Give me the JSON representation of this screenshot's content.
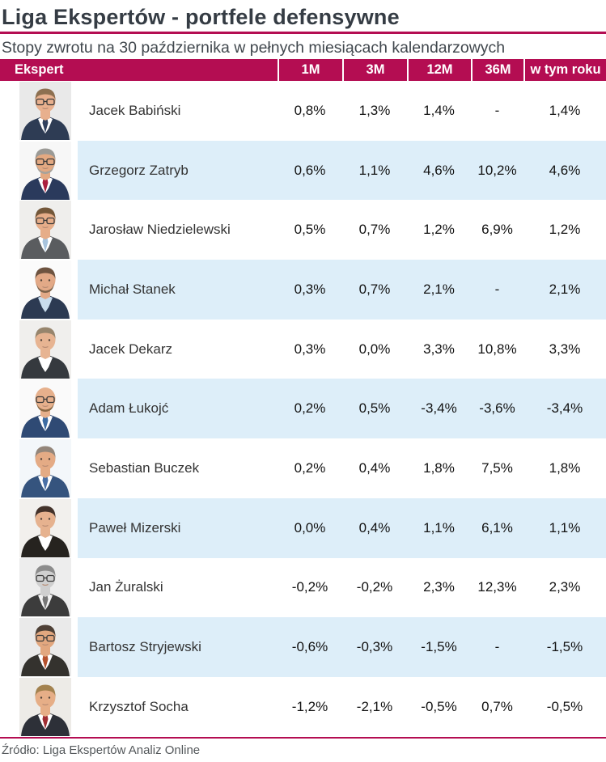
{
  "page": {
    "title": "Liga Ekspertów - portfele defensywne",
    "subtitle": "Stopy zwrotu na 30 października w pełnych miesiącach kalendarzowych",
    "source": "Źródło: Liga Ekspertów Analiz Online"
  },
  "colors": {
    "accent_crimson": "#b40d52",
    "stripe_blue": "#ddeef9",
    "title_text": "#353c44",
    "header_text": "#ffffff"
  },
  "table": {
    "columns": [
      "Ekspert",
      "1M",
      "3M",
      "12M",
      "36M",
      "w tym roku"
    ],
    "rows": [
      {
        "name": "Jacek Babiński",
        "values": [
          "0,8%",
          "1,3%",
          "1,4%",
          "-",
          "1,4%"
        ],
        "avatar": {
          "bg": "#e9e9e9",
          "skin": "#e8b08e",
          "hair": "#8d7051",
          "suit": "#2e3c54",
          "shirt": "#ffffff",
          "tie": "#31415e",
          "glasses": true
        }
      },
      {
        "name": "Grzegorz Zatryb",
        "values": [
          "0,6%",
          "1,1%",
          "4,6%",
          "10,2%",
          "4,6%"
        ],
        "avatar": {
          "bg": "#f7f7f7",
          "skin": "#e3a982",
          "hair": "#9b9a96",
          "beard": "#a5a29c",
          "suit": "#2a3a5c",
          "shirt": "#ffffff",
          "tie": "#aa1f3e",
          "glasses": true
        }
      },
      {
        "name": "Jarosław Niedzielewski",
        "values": [
          "0,5%",
          "0,7%",
          "1,2%",
          "6,9%",
          "1,2%"
        ],
        "avatar": {
          "bg": "#efeeec",
          "skin": "#e6ad89",
          "hair": "#73573a",
          "suit": "#5a5c5f",
          "shirt": "#ffffff",
          "tie": "#a8c4de",
          "glasses": true
        }
      },
      {
        "name": "Michał Stanek",
        "values": [
          "0,3%",
          "0,7%",
          "2,1%",
          "-",
          "2,1%"
        ],
        "avatar": {
          "bg": "#fbfbfb",
          "skin": "#e2a987",
          "hair": "#6d5340",
          "beard": "#7c6149",
          "suit": "#2c3a52",
          "shirt": "#c9dcec",
          "glasses": false
        }
      },
      {
        "name": "Jacek Dekarz",
        "values": [
          "0,3%",
          "0,0%",
          "3,3%",
          "10,8%",
          "3,3%"
        ],
        "avatar": {
          "bg": "#f0efed",
          "skin": "#e7b492",
          "hair": "#97856d",
          "suit": "#35393e",
          "shirt": "#ffffff",
          "glasses": false
        }
      },
      {
        "name": "Adam Łukojć",
        "values": [
          "0,2%",
          "0,5%",
          "-3,4%",
          "-3,6%",
          "-3,4%"
        ],
        "avatar": {
          "bg": "#fafafa",
          "skin": "#e6b08c",
          "bald": true,
          "beard": "#8a6844",
          "suit": "#2f4a74",
          "shirt": "#ffffff",
          "tie": "#3d6ca3",
          "glasses": true
        }
      },
      {
        "name": "Sebastian Buczek",
        "values": [
          "0,2%",
          "0,4%",
          "1,8%",
          "7,5%",
          "1,8%"
        ],
        "avatar": {
          "bg": "#f3f7fa",
          "skin": "#e4ab85",
          "hair": "#93867a",
          "suit": "#35547e",
          "shirt": "#ffffff",
          "tie": "#4a70a6",
          "glasses": false
        }
      },
      {
        "name": "Paweł Mizerski",
        "values": [
          "0,0%",
          "0,4%",
          "1,1%",
          "6,1%",
          "1,1%"
        ],
        "avatar": {
          "bg": "#f2f0ed",
          "skin": "#e6b28f",
          "hair": "#43322a",
          "suit": "#26231f",
          "shirt": "#ffffff",
          "glasses": false
        }
      },
      {
        "name": "Jan Żuralski",
        "values": [
          "-0,2%",
          "-0,2%",
          "2,3%",
          "12,3%",
          "2,3%"
        ],
        "avatar": {
          "bg": "#ededed",
          "skin": "#cfcfcf",
          "hair": "#8c8c8c",
          "suit": "#3c3c3c",
          "shirt": "#f2f2f2",
          "tie": "#777777",
          "glasses": true
        }
      },
      {
        "name": "Bartosz Stryjewski",
        "values": [
          "-0,6%",
          "-0,3%",
          "-1,5%",
          "-",
          "-1,5%"
        ],
        "avatar": {
          "bg": "#eaeaea",
          "skin": "#e2a77f",
          "hair": "#4e4036",
          "suit": "#34322e",
          "shirt": "#ffffff",
          "tie": "#b5512e",
          "glasses": true
        }
      },
      {
        "name": "Krzysztof Socha",
        "values": [
          "-1,2%",
          "-2,1%",
          "-0,5%",
          "0,7%",
          "-0,5%"
        ],
        "avatar": {
          "bg": "#edebe7",
          "skin": "#e6ae87",
          "hair": "#a3824f",
          "suit": "#2d3038",
          "shirt": "#ffffff",
          "tie": "#a02d33",
          "glasses": false
        }
      }
    ]
  },
  "chart_data": {
    "type": "table",
    "title": "Liga Ekspertów - portfele defensywne",
    "subtitle": "Stopy zwrotu na 30 października w pełnych miesiącach kalendarzowych",
    "columns": [
      "Ekspert",
      "1M",
      "3M",
      "12M",
      "36M",
      "w tym roku"
    ],
    "unit": "%",
    "rows": [
      {
        "name": "Jacek Babiński",
        "1M": 0.8,
        "3M": 1.3,
        "12M": 1.4,
        "36M": null,
        "ytd": 1.4
      },
      {
        "name": "Grzegorz Zatryb",
        "1M": 0.6,
        "3M": 1.1,
        "12M": 4.6,
        "36M": 10.2,
        "ytd": 4.6
      },
      {
        "name": "Jarosław Niedzielewski",
        "1M": 0.5,
        "3M": 0.7,
        "12M": 1.2,
        "36M": 6.9,
        "ytd": 1.2
      },
      {
        "name": "Michał Stanek",
        "1M": 0.3,
        "3M": 0.7,
        "12M": 2.1,
        "36M": null,
        "ytd": 2.1
      },
      {
        "name": "Jacek Dekarz",
        "1M": 0.3,
        "3M": 0.0,
        "12M": 3.3,
        "36M": 10.8,
        "ytd": 3.3
      },
      {
        "name": "Adam Łukojć",
        "1M": 0.2,
        "3M": 0.5,
        "12M": -3.4,
        "36M": -3.6,
        "ytd": -3.4
      },
      {
        "name": "Sebastian Buczek",
        "1M": 0.2,
        "3M": 0.4,
        "12M": 1.8,
        "36M": 7.5,
        "ytd": 1.8
      },
      {
        "name": "Paweł Mizerski",
        "1M": 0.0,
        "3M": 0.4,
        "12M": 1.1,
        "36M": 6.1,
        "ytd": 1.1
      },
      {
        "name": "Jan Żuralski",
        "1M": -0.2,
        "3M": -0.2,
        "12M": 2.3,
        "36M": 12.3,
        "ytd": 2.3
      },
      {
        "name": "Bartosz Stryjewski",
        "1M": -0.6,
        "3M": -0.3,
        "12M": -1.5,
        "36M": null,
        "ytd": -1.5
      },
      {
        "name": "Krzysztof Socha",
        "1M": -1.2,
        "3M": -2.1,
        "12M": -0.5,
        "36M": 0.7,
        "ytd": -0.5
      }
    ]
  }
}
